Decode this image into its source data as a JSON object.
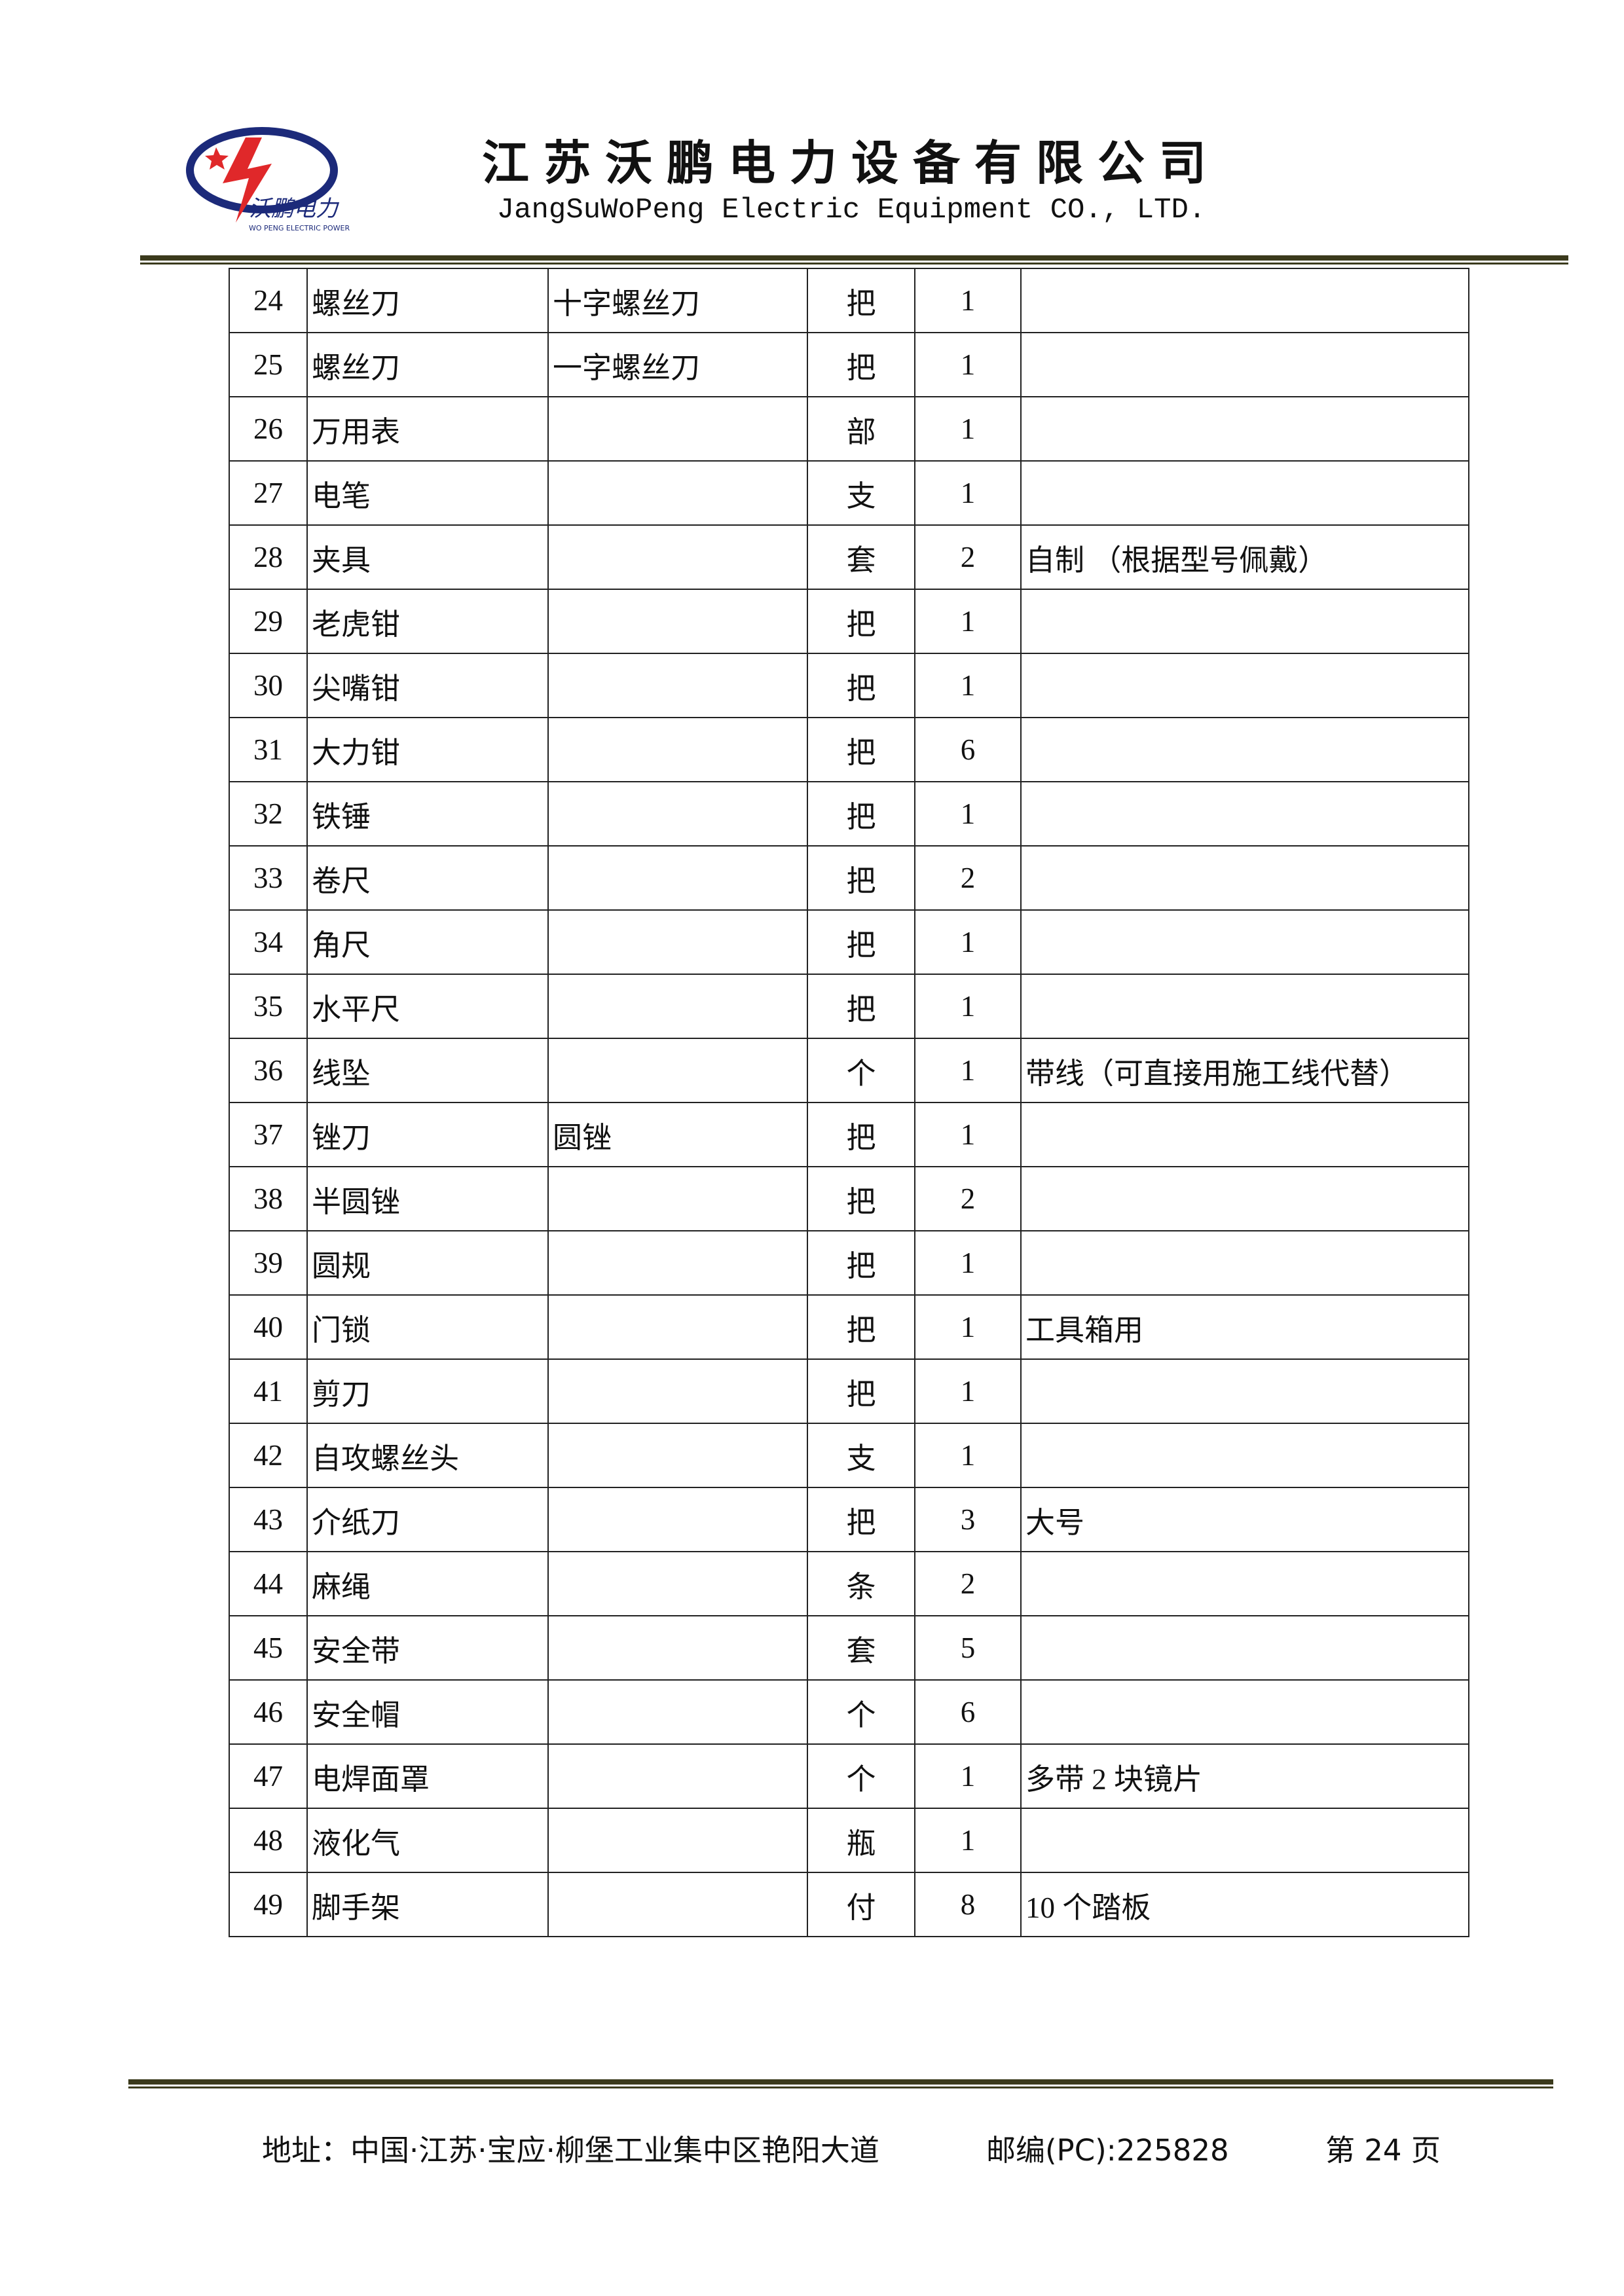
{
  "header": {
    "logo_text": "沃鹏电力",
    "logo_subtext": "WO PENG ELECTRIC POWER",
    "title": "江苏沃鹏电力设备有限公司",
    "subtitle": "JangSuWoPeng Electric Equipment CO., LTD."
  },
  "table": {
    "rows": [
      [
        24,
        "螺丝刀",
        "十字螺丝刀",
        "把",
        1,
        null
      ],
      [
        25,
        "螺丝刀",
        "一字螺丝刀",
        "把",
        1,
        null
      ],
      [
        26,
        "万用表",
        null,
        "部",
        1,
        null
      ],
      [
        27,
        "电笔",
        null,
        "支",
        1,
        null
      ],
      [
        28,
        "夹具",
        null,
        "套",
        2,
        "自制 （根据型号佩戴）"
      ],
      [
        29,
        "老虎钳",
        null,
        "把",
        1,
        null
      ],
      [
        30,
        "尖嘴钳",
        null,
        "把",
        1,
        null
      ],
      [
        31,
        "大力钳",
        null,
        "把",
        6,
        null
      ],
      [
        32,
        "铁锤",
        null,
        "把",
        1,
        null
      ],
      [
        33,
        "卷尺",
        null,
        "把",
        2,
        null
      ],
      [
        34,
        "角尺",
        null,
        "把",
        1,
        null
      ],
      [
        35,
        "水平尺",
        null,
        "把",
        1,
        null
      ],
      [
        36,
        "线坠",
        null,
        "个",
        1,
        "带线（可直接用施工线代替）"
      ],
      [
        37,
        "锉刀",
        "圆锉",
        "把",
        1,
        null
      ],
      [
        38,
        "半圆锉",
        null,
        "把",
        2,
        null
      ],
      [
        39,
        "圆规",
        null,
        "把",
        1,
        null
      ],
      [
        40,
        "门锁",
        null,
        "把",
        1,
        "工具箱用"
      ],
      [
        41,
        "剪刀",
        null,
        "把",
        1,
        null
      ],
      [
        42,
        "自攻螺丝头",
        null,
        "支",
        1,
        null
      ],
      [
        43,
        "介纸刀",
        null,
        "把",
        3,
        "大号"
      ],
      [
        44,
        "麻绳",
        null,
        "条",
        2,
        null
      ],
      [
        45,
        "安全带",
        null,
        "套",
        5,
        null
      ],
      [
        46,
        "安全帽",
        null,
        "个",
        6,
        null
      ],
      [
        47,
        "电焊面罩",
        null,
        "个",
        1,
        "多带 2 块镜片"
      ],
      [
        48,
        "液化气",
        null,
        "瓶",
        1,
        null
      ],
      [
        49,
        "脚手架",
        null,
        "付",
        8,
        "10 个踏板"
      ]
    ]
  },
  "footer": {
    "address": "地址：中国·江苏·宝应·柳堡工业集中区艳阳大道",
    "postcode": "邮编(PC):225828",
    "page": "第 24 页"
  }
}
